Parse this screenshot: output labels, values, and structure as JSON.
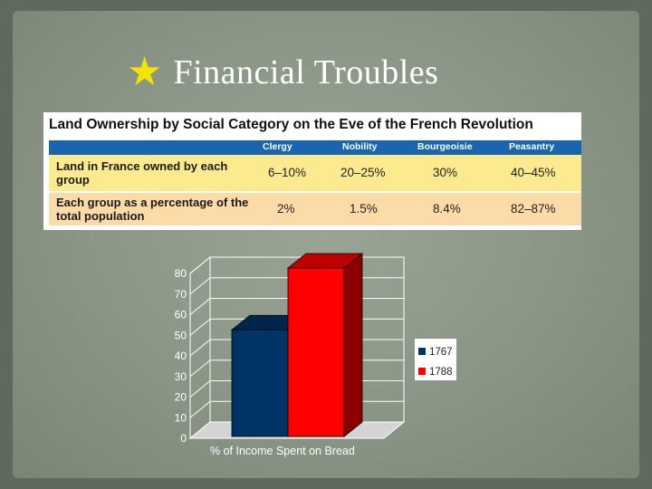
{
  "slide": {
    "title": "Financial Troubles",
    "star_color": "#f2e600"
  },
  "table": {
    "title": "Land Ownership by Social Category on the Eve of the French Revolution",
    "columns": [
      "Clergy",
      "Nobility",
      "Bourgeoisie",
      "Peasantry"
    ],
    "rows": [
      {
        "label": "Land in France owned by each group",
        "values": [
          "6–10%",
          "20–25%",
          "30%",
          "40–45%"
        ]
      },
      {
        "label": "Each group as a percentage of the total population",
        "values": [
          "2%",
          "1.5%",
          "8.4%",
          "82–87%"
        ]
      }
    ],
    "colors": {
      "header": "#1a65b0",
      "row1": "#fbeb8e",
      "row2": "#fbdca8"
    }
  },
  "chart_data": {
    "type": "bar",
    "categories": [
      "% of Income Spent on Bread"
    ],
    "series": [
      {
        "name": "1767",
        "values": [
          50
        ],
        "color": "#003366"
      },
      {
        "name": "1788",
        "values": [
          80
        ],
        "color": "#ff0000"
      }
    ],
    "title": "",
    "xlabel": "% of Income Spent on Bread",
    "ylabel": "",
    "ylim": [
      0,
      80
    ],
    "yticks": [
      0,
      10,
      20,
      30,
      40,
      50,
      60,
      70,
      80
    ],
    "grid": true,
    "style": "3d",
    "legend": "right"
  }
}
